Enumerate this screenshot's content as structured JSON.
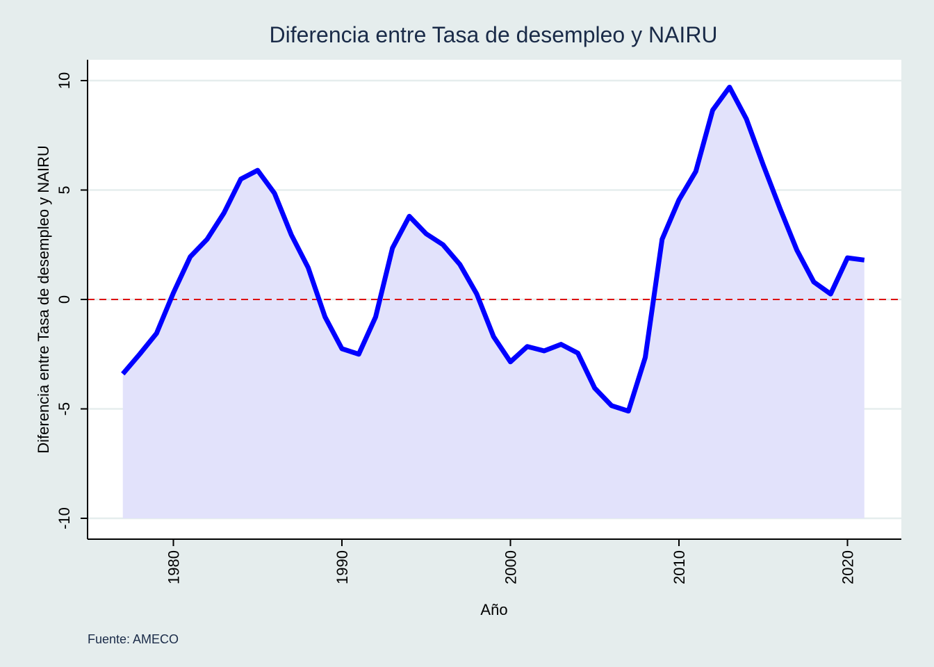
{
  "chart_data": {
    "type": "area",
    "title": "Diferencia entre Tasa de desempleo y NAIRU",
    "xlabel": "Año",
    "ylabel": "Diferencia entre Tasa de desempleo y NAIRU",
    "note": "Fuente: AMECO",
    "x_ticks": [
      1980,
      1990,
      2000,
      2010,
      2020
    ],
    "y_ticks": [
      -10,
      -5,
      0,
      5,
      10
    ],
    "x_tick_labels": [
      "1980",
      "1990",
      "2000",
      "2010",
      "2020"
    ],
    "y_tick_labels": [
      "-10",
      "-5",
      "0",
      "5",
      "10"
    ],
    "xlim": [
      1975,
      2023
    ],
    "ylim": [
      -11,
      11
    ],
    "area_baseline": -10,
    "reference_line": {
      "y": 0,
      "style": "dashed",
      "color": "#dd1111"
    },
    "grid": true,
    "colors": {
      "background": "#e5eded",
      "plot_background": "#ffffff",
      "grid": "#e5eded",
      "line": "#0000ff",
      "area_fill": "#e2e2fb",
      "text": "#1a2b48"
    },
    "series": [
      {
        "x": [
          1977,
          1978,
          1979,
          1980,
          1981,
          1982,
          1983,
          1984,
          1985,
          1986,
          1987,
          1988,
          1989,
          1990,
          1991,
          1992,
          1993,
          1994,
          1995,
          1996,
          1997,
          1998,
          1999,
          2000,
          2001,
          2002,
          2003,
          2004,
          2005,
          2006,
          2007,
          2008,
          2009,
          2010,
          2011,
          2012,
          2013,
          2014,
          2015,
          2016,
          2017,
          2018,
          2019,
          2020,
          2021
        ],
        "values": [
          -3.4,
          -2.5,
          -1.55,
          0.3,
          1.95,
          2.75,
          3.95,
          5.5,
          5.9,
          4.85,
          2.95,
          1.45,
          -0.8,
          -2.25,
          -2.5,
          -0.8,
          2.35,
          3.8,
          3.0,
          2.5,
          1.6,
          0.25,
          -1.7,
          -2.85,
          -2.15,
          -2.35,
          -2.05,
          -2.45,
          -4.05,
          -4.85,
          -5.1,
          -2.65,
          2.75,
          4.55,
          5.85,
          8.65,
          9.7,
          8.25,
          6.15,
          4.15,
          2.25,
          0.8,
          0.25,
          1.9,
          1.8
        ]
      }
    ]
  }
}
